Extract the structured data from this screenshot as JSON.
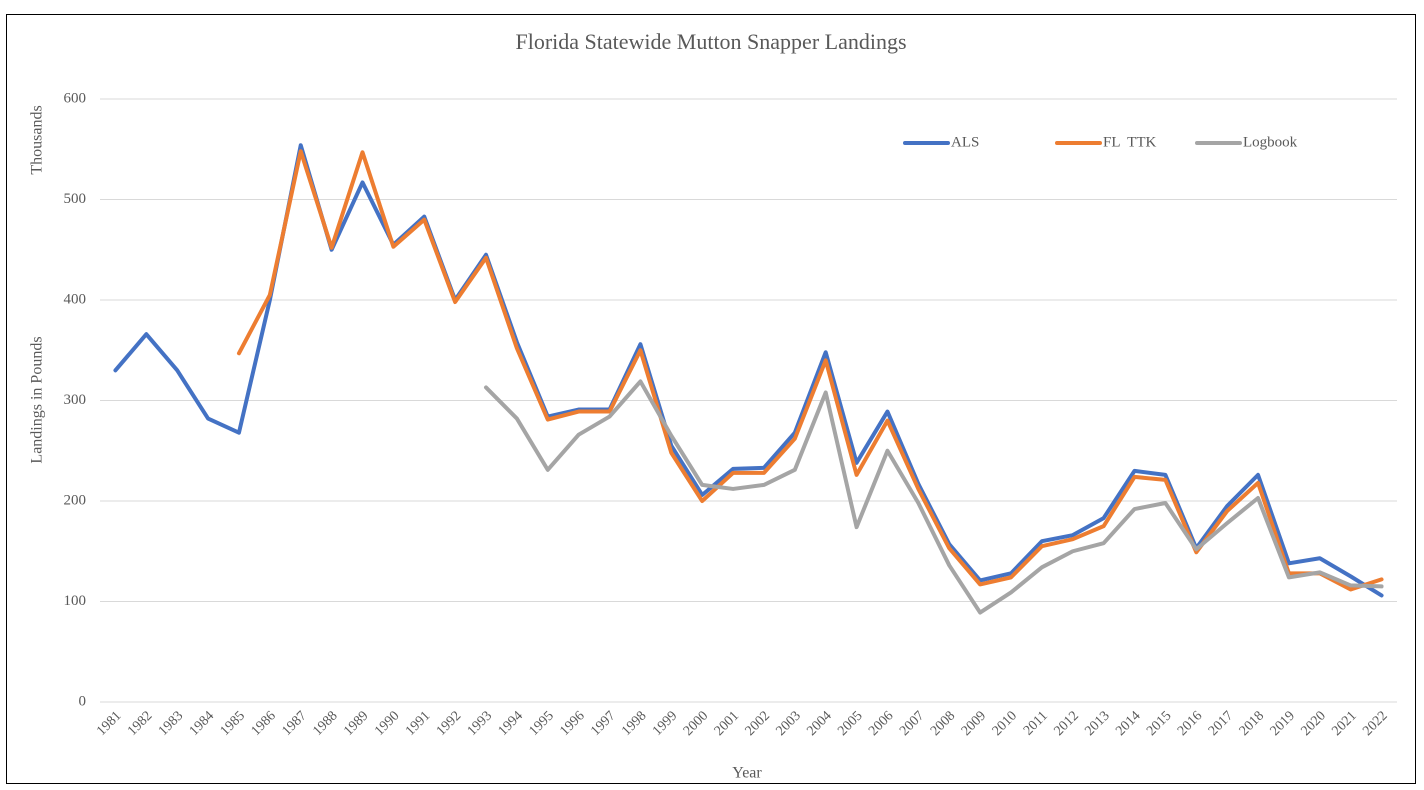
{
  "chart_data": {
    "type": "line",
    "title": "Florida Statewide Mutton Snapper Landings",
    "x_label": "Year",
    "y_label": "Landings in Pounds",
    "y_unit_label": "Thousands",
    "categories": [
      "1981",
      "1982",
      "1983",
      "1984",
      "1985",
      "1986",
      "1987",
      "1988",
      "1989",
      "1990",
      "1991",
      "1992",
      "1993",
      "1994",
      "1995",
      "1996",
      "1997",
      "1998",
      "1999",
      "2000",
      "2001",
      "2002",
      "2003",
      "2004",
      "2005",
      "2006",
      "2007",
      "2008",
      "2009",
      "2010",
      "2011",
      "2012",
      "2013",
      "2014",
      "2015",
      "2016",
      "2017",
      "2018",
      "2019",
      "2020",
      "2021",
      "2022"
    ],
    "series": [
      {
        "name": "ALS",
        "color": "#4472c4",
        "values": [
          330,
          366,
          330,
          282,
          268,
          400,
          554,
          450,
          517,
          455,
          483,
          400,
          445,
          358,
          284,
          291,
          291,
          356,
          255,
          206,
          232,
          233,
          268,
          348,
          238,
          289,
          217,
          157,
          121,
          128,
          160,
          166,
          183,
          230,
          226,
          153,
          195,
          226,
          138,
          143,
          125,
          106
        ]
      },
      {
        "name": "FL  TTK",
        "color": "#ed7d31",
        "values": [
          null,
          null,
          null,
          null,
          347,
          405,
          548,
          452,
          547,
          453,
          480,
          398,
          442,
          352,
          281,
          289,
          289,
          350,
          248,
          200,
          228,
          228,
          262,
          340,
          226,
          280,
          212,
          153,
          117,
          124,
          155,
          162,
          175,
          224,
          221,
          149,
          190,
          218,
          128,
          128,
          112,
          122
        ]
      },
      {
        "name": "Logbook",
        "color": "#a5a5a5",
        "values": [
          null,
          null,
          null,
          null,
          null,
          null,
          null,
          null,
          null,
          null,
          null,
          null,
          313,
          282,
          231,
          266,
          284,
          319,
          265,
          216,
          212,
          216,
          231,
          308,
          174,
          250,
          198,
          136,
          89,
          109,
          134,
          150,
          158,
          192,
          198,
          152,
          178,
          203,
          124,
          129,
          116,
          115
        ]
      }
    ],
    "ylim": [
      0,
      600
    ],
    "yticks": [
      0,
      100,
      200,
      300,
      400,
      500,
      600
    ],
    "grid": true,
    "legend": "top-right"
  }
}
